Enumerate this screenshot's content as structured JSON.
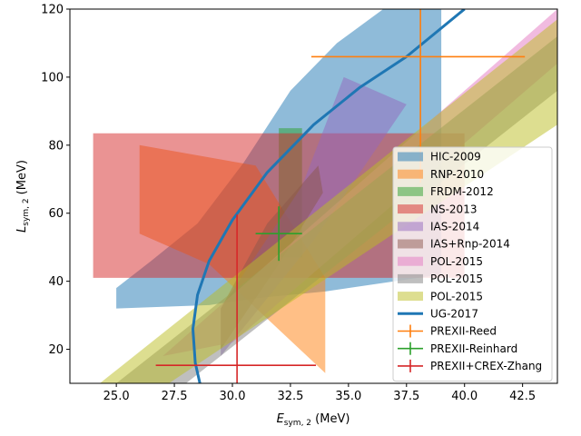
{
  "chart_data": {
    "type": "area",
    "xlabel": "E_sym,2 (MeV)",
    "ylabel": "L_sym,2 (MeV)",
    "xlim": [
      23.0,
      44.0
    ],
    "ylim": [
      10,
      120
    ],
    "xticks": [
      25.0,
      27.5,
      30.0,
      32.5,
      35.0,
      37.5,
      40.0,
      42.5
    ],
    "xtick_labels": [
      "25.0",
      "27.5",
      "30.0",
      "32.5",
      "35.0",
      "37.5",
      "40.0",
      "42.5"
    ],
    "yticks": [
      20,
      40,
      60,
      80,
      100,
      120
    ],
    "ytick_labels": [
      "20",
      "40",
      "60",
      "80",
      "100",
      "120"
    ],
    "grid": false,
    "legend_position": "lower-right",
    "regions": [
      {
        "name": "HIC-2009",
        "color": "#1f77b4",
        "opacity": 0.5,
        "polygon": [
          [
            25.0,
            32
          ],
          [
            25.0,
            38
          ],
          [
            26.5,
            46
          ],
          [
            28.5,
            57
          ],
          [
            30.5,
            75
          ],
          [
            32.5,
            96
          ],
          [
            34.5,
            110
          ],
          [
            36.5,
            120
          ],
          [
            39.0,
            120
          ],
          [
            39.0,
            42
          ],
          [
            37.0,
            40
          ],
          [
            34.0,
            37
          ],
          [
            31.0,
            35
          ],
          [
            29.0,
            33
          ]
        ]
      },
      {
        "name": "RNP-2010",
        "color": "#ff7f0e",
        "opacity": 0.5,
        "polygon": [
          [
            26.0,
            80
          ],
          [
            31.0,
            74
          ],
          [
            34.0,
            41
          ],
          [
            34.0,
            13
          ],
          [
            29.0,
            45
          ],
          [
            26.0,
            54
          ]
        ]
      },
      {
        "name": "FRDM-2012",
        "color": "#2ca02c",
        "opacity": 0.5,
        "polygon": [
          [
            32.0,
            85
          ],
          [
            33.0,
            85
          ],
          [
            33.0,
            47
          ],
          [
            32.0,
            47
          ]
        ]
      },
      {
        "name": "NS-2013",
        "color": "#d62728",
        "opacity": 0.5,
        "polygon": [
          [
            24.0,
            83.5
          ],
          [
            40.0,
            83.5
          ],
          [
            40.0,
            41
          ],
          [
            24.0,
            41
          ]
        ]
      },
      {
        "name": "IAS-2014",
        "color": "#9467bd",
        "opacity": 0.5,
        "polygon": [
          [
            29.5,
            32
          ],
          [
            33.0,
            68
          ],
          [
            34.8,
            100
          ],
          [
            37.5,
            92
          ],
          [
            33.5,
            52
          ],
          [
            29.5,
            18
          ]
        ]
      },
      {
        "name": "IAS+Rnp-2014",
        "color": "#8c564b",
        "opacity": 0.5,
        "polygon": [
          [
            29.5,
            32
          ],
          [
            31.5,
            57
          ],
          [
            33.7,
            74
          ],
          [
            33.9,
            66
          ],
          [
            32.0,
            45
          ],
          [
            29.5,
            20
          ]
        ]
      },
      {
        "name": "POL-2015",
        "color": "#e377c2",
        "opacity": 0.5,
        "polygon": [
          [
            27.0,
            18
          ],
          [
            44.0,
            120
          ],
          [
            44.0,
            104
          ],
          [
            30.0,
            22
          ]
        ]
      },
      {
        "name": "POL-2015",
        "color": "#7f7f7f",
        "opacity": 0.5,
        "polygon": [
          [
            25.0,
            10
          ],
          [
            44.0,
            112
          ],
          [
            44.0,
            96
          ],
          [
            28.0,
            10
          ]
        ]
      },
      {
        "name": "POL-2015",
        "color": "#bcbd22",
        "opacity": 0.5,
        "polygon": [
          [
            23.0,
            3
          ],
          [
            44.0,
            117
          ],
          [
            44.0,
            86
          ],
          [
            25.5,
            2
          ]
        ]
      }
    ],
    "lines": [
      {
        "name": "UG-2017",
        "color": "#1f77b4",
        "width": 3,
        "points": [
          [
            28.6,
            10
          ],
          [
            28.4,
            16
          ],
          [
            28.3,
            26
          ],
          [
            28.5,
            36
          ],
          [
            29.0,
            46
          ],
          [
            30.0,
            58
          ],
          [
            31.5,
            72
          ],
          [
            33.5,
            86
          ],
          [
            35.5,
            97
          ],
          [
            37.5,
            106
          ],
          [
            40.0,
            120
          ]
        ]
      }
    ],
    "errorbars": [
      {
        "name": "PREXII-Reed",
        "color": "#ff7f0e",
        "x": 38.1,
        "y": 106,
        "xerr": [
          4.7,
          4.5
        ],
        "yerr": [
          37,
          37
        ]
      },
      {
        "name": "PREXII-Reinhard",
        "color": "#2ca02c",
        "x": 32.0,
        "y": 54,
        "xerr": [
          1.0,
          1.0
        ],
        "yerr": [
          8,
          8
        ]
      },
      {
        "name": "PREXII+CREX-Zhang",
        "color": "#d62728",
        "x": 30.2,
        "y": 15.3,
        "xerr": [
          3.5,
          3.4
        ],
        "yerr": [
          5.3,
          44.3
        ]
      }
    ]
  }
}
